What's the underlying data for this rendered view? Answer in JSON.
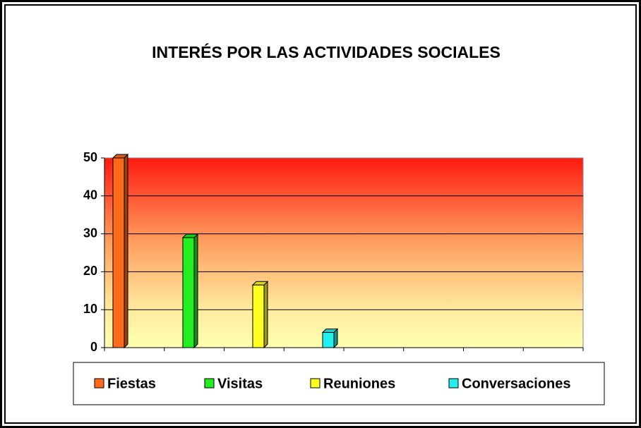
{
  "chart_data": {
    "type": "bar",
    "title": "INTERÉS POR LAS ACTIVIDADES SOCIALES",
    "series": [
      {
        "name": "Fiestas",
        "color": "#ff6a1a",
        "values": [
          50
        ]
      },
      {
        "name": "Visitas",
        "color": "#22ee22",
        "values": [
          29
        ]
      },
      {
        "name": "Reuniones",
        "color": "#ffff22",
        "values": [
          16.5
        ]
      },
      {
        "name": "Conversaciones",
        "color": "#22eeee",
        "values": [
          4
        ]
      }
    ],
    "ylim": [
      0,
      50
    ],
    "yticks": [
      0,
      10,
      20,
      30,
      40,
      50
    ],
    "grid": true,
    "legend": "bottom"
  }
}
